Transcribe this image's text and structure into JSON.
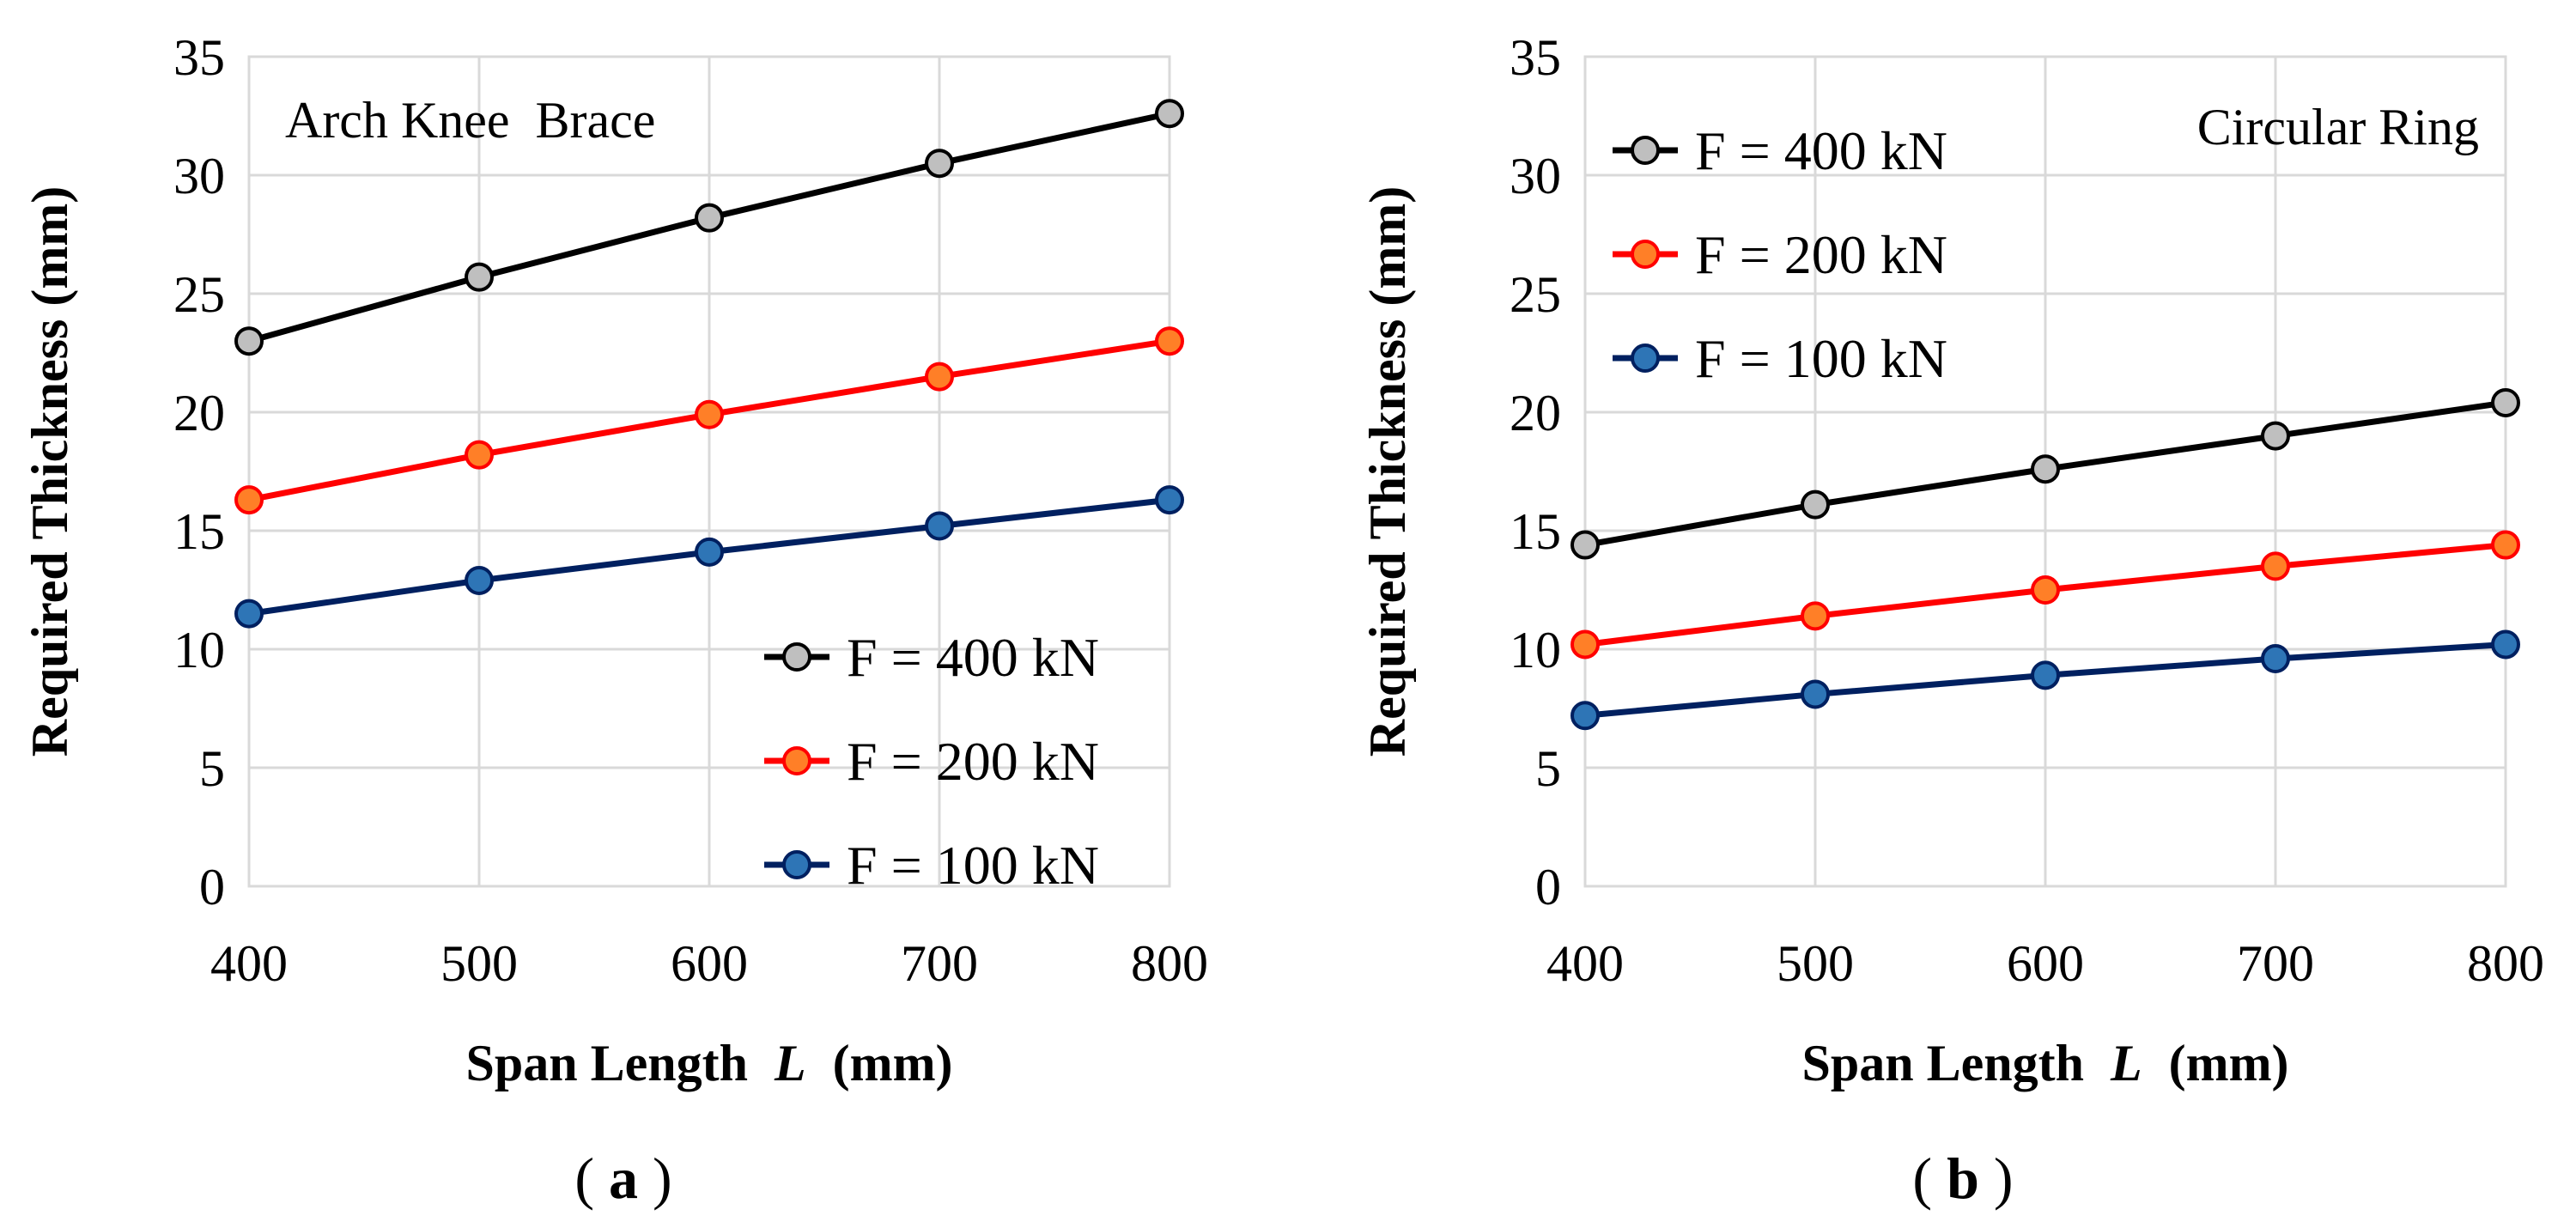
{
  "chart_data": [
    {
      "type": "line",
      "panel": "a",
      "title": "Arch Knee  Brace",
      "caption_open": "(",
      "caption_letter": "a",
      "caption_close": ")",
      "x": [
        400,
        500,
        600,
        700,
        800
      ],
      "x_ticks": [
        "400",
        "500",
        "600",
        "700",
        "800"
      ],
      "y_ticks": [
        "0",
        "5",
        "10",
        "15",
        "20",
        "25",
        "30",
        "35"
      ],
      "xlabel": "Span Length",
      "xlabel_var": "L",
      "xlabel_unit": "(mm)",
      "ylabel": "Required Thickness (mm)",
      "xlim": [
        400,
        800
      ],
      "ylim": [
        0,
        35
      ],
      "grid": true,
      "legend_position": "bottom-right",
      "series": [
        {
          "name": "F = 400 kN",
          "color": "#000000",
          "marker_fill": "#bfbfbf",
          "values": [
            23.0,
            25.7,
            28.2,
            30.5,
            32.6
          ]
        },
        {
          "name": "F = 200 kN",
          "color": "#ff0000",
          "marker_fill": "#ff7f27",
          "values": [
            16.3,
            18.2,
            19.9,
            21.5,
            23.0
          ]
        },
        {
          "name": "F = 100 kN",
          "color": "#002060",
          "marker_fill": "#2e75b6",
          "values": [
            11.5,
            12.9,
            14.1,
            15.2,
            16.3
          ]
        }
      ]
    },
    {
      "type": "line",
      "panel": "b",
      "title": "Circular Ring",
      "caption_open": "(",
      "caption_letter": "b",
      "caption_close": ")",
      "x": [
        400,
        500,
        600,
        700,
        800
      ],
      "x_ticks": [
        "400",
        "500",
        "600",
        "700",
        "800"
      ],
      "y_ticks": [
        "0",
        "5",
        "10",
        "15",
        "20",
        "25",
        "30",
        "35"
      ],
      "xlabel": "Span Length",
      "xlabel_var": "L",
      "xlabel_unit": "(mm)",
      "ylabel": "Required Thickness (mm)",
      "xlim": [
        400,
        800
      ],
      "ylim": [
        0,
        35
      ],
      "grid": true,
      "legend_position": "top-left",
      "series": [
        {
          "name": "F = 400 kN",
          "color": "#000000",
          "marker_fill": "#bfbfbf",
          "values": [
            14.4,
            16.1,
            17.6,
            19.0,
            20.4
          ]
        },
        {
          "name": "F = 200 kN",
          "color": "#ff0000",
          "marker_fill": "#ff7f27",
          "values": [
            10.2,
            11.4,
            12.5,
            13.5,
            14.4
          ]
        },
        {
          "name": "F = 100 kN",
          "color": "#002060",
          "marker_fill": "#2e75b6",
          "values": [
            7.2,
            8.1,
            8.9,
            9.6,
            10.2
          ]
        }
      ]
    }
  ]
}
